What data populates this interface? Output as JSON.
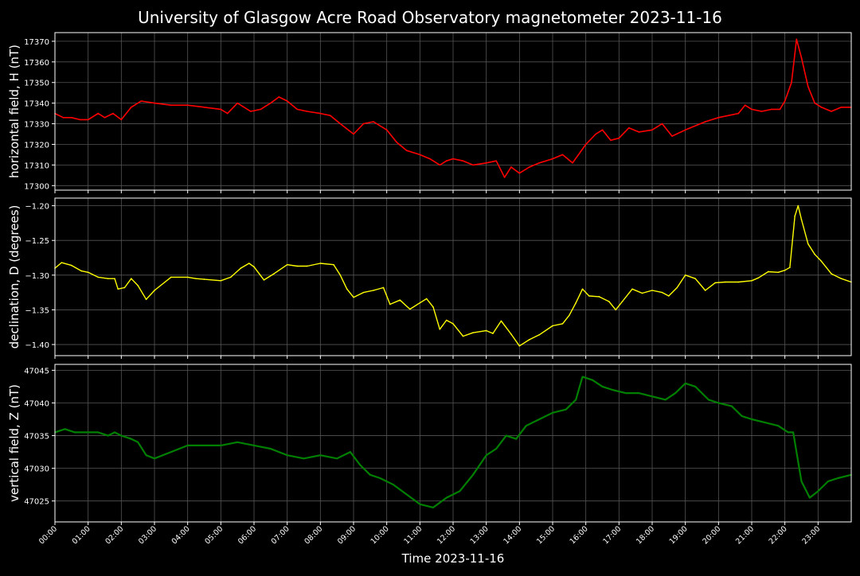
{
  "title": "University of Glasgow Acre Road Observatory magnetometer 2023-11-16",
  "xlabel": "Time 2023-11-16",
  "x_ticks": [
    "00:00",
    "01:00",
    "02:00",
    "03:00",
    "04:00",
    "05:00",
    "06:00",
    "07:00",
    "08:00",
    "09:00",
    "10:00",
    "11:00",
    "12:00",
    "13:00",
    "14:00",
    "15:00",
    "16:00",
    "17:00",
    "18:00",
    "19:00",
    "20:00",
    "21:00",
    "22:00",
    "23:00"
  ],
  "colors": {
    "background": "#000000",
    "H": "#ff0000",
    "D": "#ffff00",
    "Z": "#008000",
    "grid": "#555555",
    "text": "#ffffff"
  },
  "chart_data": [
    {
      "type": "line",
      "name": "H",
      "ylabel": "horizontal field, H (nT)",
      "xlim": [
        0,
        24
      ],
      "ylim": [
        17297.8,
        17374.2
      ],
      "yticks": [
        17300,
        17310,
        17320,
        17330,
        17340,
        17350,
        17360,
        17370
      ],
      "ytick_labels": [
        "17300",
        "17310",
        "17320",
        "17330",
        "17340",
        "17350",
        "17360",
        "17370"
      ],
      "grid": true,
      "x": [
        0,
        0.25,
        0.5,
        0.75,
        1,
        1.3,
        1.5,
        1.75,
        2,
        2.3,
        2.6,
        3,
        3.5,
        4,
        4.5,
        5,
        5.2,
        5.5,
        5.9,
        6.2,
        6.5,
        6.75,
        7,
        7.3,
        7.6,
        8,
        8.3,
        8.6,
        9,
        9.3,
        9.6,
        10,
        10.3,
        10.6,
        11,
        11.3,
        11.6,
        11.8,
        12,
        12.3,
        12.6,
        13,
        13.3,
        13.55,
        13.75,
        14,
        14.3,
        14.6,
        15,
        15.3,
        15.6,
        16,
        16.3,
        16.5,
        16.75,
        17,
        17.3,
        17.6,
        18,
        18.3,
        18.6,
        19,
        19.3,
        19.6,
        20,
        20.3,
        20.6,
        20.8,
        21,
        21.3,
        21.6,
        21.85,
        22,
        22.2,
        22.35,
        22.5,
        22.7,
        22.9,
        23.1,
        23.4,
        23.7,
        24
      ],
      "values": [
        17335,
        17333,
        17333,
        17332,
        17332,
        17335,
        17333,
        17335,
        17332,
        17338,
        17341,
        17340,
        17339,
        17339,
        17338,
        17337,
        17335,
        17340,
        17336,
        17337,
        17340,
        17343,
        17341,
        17337,
        17336,
        17335,
        17334,
        17330,
        17325,
        17330,
        17331,
        17327,
        17321,
        17317,
        17315,
        17313,
        17310,
        17312,
        17313,
        17312,
        17310,
        17311,
        17312,
        17304,
        17309,
        17306,
        17309,
        17311,
        17313,
        17315,
        17311,
        17320,
        17325,
        17327,
        17322,
        17323,
        17328,
        17326,
        17327,
        17330,
        17324,
        17327,
        17329,
        17331,
        17333,
        17334,
        17335,
        17339,
        17337,
        17336,
        17337,
        17337,
        17341,
        17350,
        17371,
        17362,
        17348,
        17340,
        17338,
        17336,
        17338,
        17338
      ]
    },
    {
      "type": "line",
      "name": "D",
      "ylabel": "declination, D (degrees)",
      "xlim": [
        0,
        24
      ],
      "ylim": [
        -1.416,
        -1.189
      ],
      "yticks": [
        -1.4,
        -1.35,
        -1.3,
        -1.25,
        -1.2
      ],
      "ytick_labels": [
        "−1.40",
        "−1.35",
        "−1.30",
        "−1.25",
        "−1.20"
      ],
      "grid": true,
      "x": [
        0,
        0.2,
        0.5,
        0.8,
        1,
        1.3,
        1.6,
        1.8,
        1.9,
        2.1,
        2.3,
        2.5,
        2.75,
        3,
        3.5,
        4,
        4.25,
        4.5,
        5,
        5.3,
        5.6,
        5.85,
        6,
        6.3,
        6.6,
        7,
        7.3,
        7.6,
        8,
        8.4,
        8.6,
        8.8,
        9,
        9.3,
        9.6,
        9.9,
        10.1,
        10.4,
        10.7,
        11,
        11.2,
        11.4,
        11.6,
        11.8,
        12,
        12.3,
        12.6,
        13,
        13.2,
        13.45,
        13.75,
        14,
        14.3,
        14.6,
        15,
        15.3,
        15.5,
        15.7,
        15.9,
        16.1,
        16.4,
        16.7,
        16.9,
        17.1,
        17.4,
        17.7,
        18,
        18.3,
        18.5,
        18.75,
        19,
        19.3,
        19.6,
        19.9,
        20.2,
        20.6,
        21,
        21.2,
        21.5,
        21.8,
        22,
        22.15,
        22.3,
        22.4,
        22.5,
        22.7,
        22.9,
        23.1,
        23.4,
        23.7,
        24
      ],
      "values": [
        -1.29,
        -1.282,
        -1.286,
        -1.294,
        -1.296,
        -1.303,
        -1.305,
        -1.305,
        -1.32,
        -1.318,
        -1.305,
        -1.315,
        -1.335,
        -1.322,
        -1.303,
        -1.303,
        -1.305,
        -1.306,
        -1.308,
        -1.303,
        -1.29,
        -1.283,
        -1.288,
        -1.307,
        -1.298,
        -1.285,
        -1.287,
        -1.287,
        -1.283,
        -1.285,
        -1.3,
        -1.32,
        -1.332,
        -1.325,
        -1.322,
        -1.318,
        -1.342,
        -1.336,
        -1.349,
        -1.34,
        -1.334,
        -1.346,
        -1.378,
        -1.365,
        -1.37,
        -1.388,
        -1.383,
        -1.38,
        -1.384,
        -1.366,
        -1.385,
        -1.402,
        -1.393,
        -1.386,
        -1.373,
        -1.37,
        -1.358,
        -1.34,
        -1.32,
        -1.33,
        -1.331,
        -1.338,
        -1.35,
        -1.338,
        -1.32,
        -1.326,
        -1.322,
        -1.325,
        -1.33,
        -1.318,
        -1.3,
        -1.305,
        -1.322,
        -1.311,
        -1.31,
        -1.31,
        -1.308,
        -1.304,
        -1.295,
        -1.296,
        -1.293,
        -1.289,
        -1.215,
        -1.2,
        -1.22,
        -1.255,
        -1.27,
        -1.28,
        -1.298,
        -1.305,
        -1.31
      ]
    },
    {
      "type": "line",
      "name": "Z",
      "ylabel": "vertical field, Z (nT)",
      "xlim": [
        0,
        24
      ],
      "ylim": [
        47021.8,
        47045.9
      ],
      "yticks": [
        47025,
        47030,
        47035,
        47040,
        47045
      ],
      "ytick_labels": [
        "47025",
        "47030",
        "47035",
        "47040",
        "47045"
      ],
      "grid": true,
      "x": [
        0,
        0.3,
        0.6,
        1,
        1.3,
        1.6,
        1.8,
        2,
        2.3,
        2.5,
        2.75,
        3,
        3.5,
        4,
        4.5,
        5,
        5.5,
        6,
        6.5,
        7,
        7.5,
        8,
        8.5,
        8.9,
        9.2,
        9.5,
        9.8,
        10.2,
        10.6,
        11,
        11.4,
        11.8,
        12.2,
        12.6,
        13,
        13.3,
        13.6,
        13.9,
        14.2,
        14.6,
        15,
        15.4,
        15.7,
        15.9,
        16.2,
        16.5,
        16.8,
        17.2,
        17.6,
        18,
        18.4,
        18.7,
        19,
        19.3,
        19.7,
        20,
        20.4,
        20.7,
        21,
        21.4,
        21.8,
        22.1,
        22.25,
        22.5,
        22.75,
        23,
        23.3,
        23.6,
        24
      ],
      "values": [
        47035.5,
        47036,
        47035.5,
        47035.5,
        47035.5,
        47035,
        47035.5,
        47035,
        47034.5,
        47034,
        47032,
        47031.5,
        47032.5,
        47033.5,
        47033.5,
        47033.5,
        47034,
        47033.5,
        47033,
        47032,
        47031.5,
        47032,
        47031.5,
        47032.5,
        47030.5,
        47029,
        47028.5,
        47027.5,
        47026,
        47024.5,
        47024,
        47025.5,
        47026.5,
        47029,
        47032,
        47033,
        47035,
        47034.5,
        47036.5,
        47037.5,
        47038.5,
        47039,
        47040.5,
        47044,
        47043.5,
        47042.5,
        47042,
        47041.5,
        47041.5,
        47041,
        47040.5,
        47041.5,
        47043,
        47042.5,
        47040.5,
        47040,
        47039.5,
        47038,
        47037.5,
        47037,
        47036.5,
        47035.5,
        47035.5,
        47028,
        47025.5,
        47026.5,
        47028,
        47028.5,
        47029
      ]
    }
  ]
}
